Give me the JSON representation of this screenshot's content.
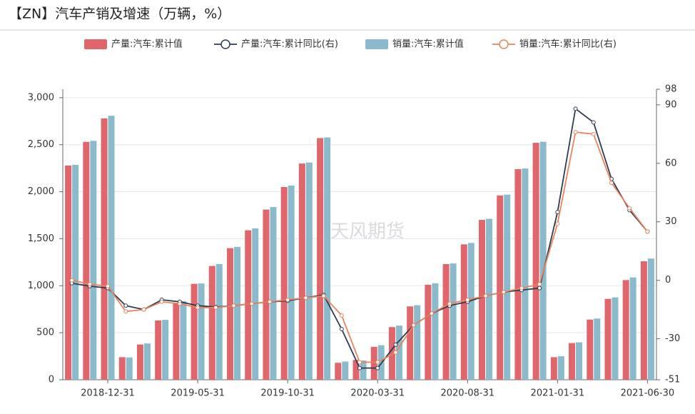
{
  "chart_data": {
    "type": "bar",
    "title": "【ZN】汽车产销及增速（万辆，%）",
    "watermark": "天风期货",
    "categories": [
      null,
      null,
      "2018-12-31",
      null,
      null,
      null,
      null,
      "2019-05-31",
      null,
      null,
      null,
      null,
      "2019-10-31",
      null,
      null,
      null,
      null,
      "2020-03-31",
      null,
      null,
      null,
      null,
      "2020-08-31",
      null,
      null,
      null,
      null,
      "2021-01-31",
      null,
      null,
      null,
      null,
      "2021-06-30"
    ],
    "ylim": [
      0,
      3090
    ],
    "yticks": [
      0,
      500,
      {
        "value": 1000,
        "label": "1,000"
      },
      {
        "value": 1500,
        "label": "1,500"
      },
      {
        "value": 2000,
        "label": "2,000"
      },
      {
        "value": 2500,
        "label": "2,500"
      },
      {
        "value": 3000,
        "label": "3,000"
      }
    ],
    "y2lim": [
      -51,
      98
    ],
    "y2ticks": [
      -51,
      -30,
      0,
      30,
      60,
      90,
      98
    ],
    "grid": true,
    "legend": "top",
    "series": [
      {
        "name": "产量:汽车:累计值",
        "type": "bar",
        "color": "#e0666b",
        "values": [
          2279,
          2530,
          2780,
          240,
          375,
          630,
          820,
          1020,
          1210,
          1400,
          1590,
          1810,
          2050,
          2300,
          2570,
          180,
          210,
          350,
          560,
          780,
          1010,
          1230,
          1440,
          1700,
          1960,
          2240,
          2520,
          240,
          390,
          640,
          860,
          1060,
          1260
        ]
      },
      {
        "name": "产量:汽车:累计同比(右)",
        "type": "line",
        "axis": "y2",
        "color": "#2f3b52",
        "values": [
          -1.5,
          -3,
          -4,
          -13,
          -15,
          -10,
          -11,
          -13,
          -13.7,
          -13,
          -12,
          -11,
          -10.5,
          -9,
          -7.5,
          -25,
          -45,
          -45,
          -33,
          -23,
          -17,
          -13,
          -11,
          -8,
          -6,
          -5,
          -4,
          35,
          88,
          81,
          52,
          36,
          25
        ]
      },
      {
        "name": "销量:汽车:累计值",
        "type": "bar",
        "color": "#8cbacd",
        "values": [
          2286,
          2541,
          2808,
          237,
          386,
          637,
          835,
          1024,
          1230,
          1413,
          1610,
          1837,
          2066,
          2311,
          2577,
          194,
          205,
          367,
          576,
          793,
          1026,
          1237,
          1455,
          1712,
          1969,
          2247,
          2531,
          250,
          398,
          651,
          876,
          1088,
          1289
        ]
      },
      {
        "name": "销量:汽车:累计同比(右)",
        "type": "line",
        "axis": "y2",
        "color": "#e8845c",
        "values": [
          0,
          -2,
          -3,
          -16,
          -15,
          -11,
          -12,
          -14,
          -14,
          -13,
          -12,
          -11,
          -10,
          -9,
          -8,
          -18,
          -42,
          -42,
          -37,
          -23,
          -17,
          -12,
          -10,
          -8,
          -6,
          -4,
          -2,
          29,
          76,
          75,
          50,
          37,
          25
        ]
      }
    ]
  }
}
